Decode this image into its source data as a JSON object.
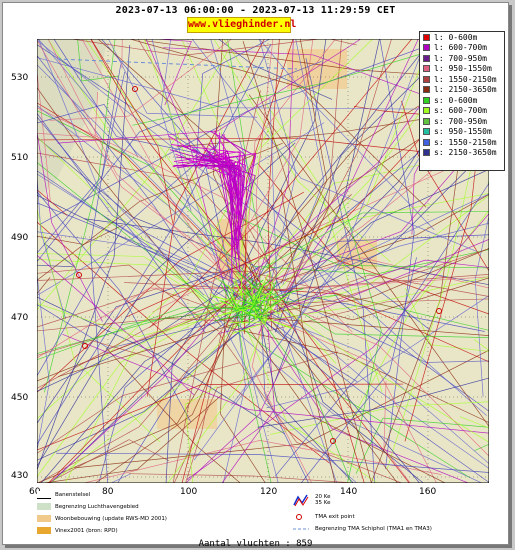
{
  "header": {
    "title": "2023-07-13 06:00:00 - 2023-07-13 11:29:59 CET",
    "site": "www.vlieghinder.nl"
  },
  "axes": {
    "y": [
      "530",
      "510",
      "490",
      "470",
      "450",
      "430"
    ],
    "x": [
      "60",
      "80",
      "100",
      "120",
      "140",
      "160"
    ]
  },
  "legend": [
    {
      "label": "l: 0-600m",
      "color": "#e00000"
    },
    {
      "label": "l: 600-700m",
      "color": "#b000c0"
    },
    {
      "label": "l: 700-950m",
      "color": "#6a1a8a"
    },
    {
      "label": "l: 950-1550m",
      "color": "#e06080"
    },
    {
      "label": "l: 1550-2150m",
      "color": "#b04040"
    },
    {
      "label": "l: 2150-3650m",
      "color": "#8a2a10"
    },
    {
      "label": "s: 0-600m",
      "color": "#30d020"
    },
    {
      "label": "s: 600-700m",
      "color": "#a0ff20"
    },
    {
      "label": "s: 700-950m",
      "color": "#60c040"
    },
    {
      "label": "s: 950-1550m",
      "color": "#20c0a0"
    },
    {
      "label": "s: 1550-2150m",
      "color": "#4060e0"
    },
    {
      "label": "s: 2150-3650m",
      "color": "#303090"
    }
  ],
  "key": {
    "runways": "Banenstelsel",
    "airport": "Begrenzing Luchthavengebied",
    "housing": "Woonbebouwing (update RWS-MD 2001)",
    "vinex": "Vinex2001 (bron: RPD)",
    "kw20": "20 Ke",
    "kw35": "35 Ke",
    "exit": "TMA exit point",
    "tma": "Begrenzing TMA Schiphol  (TMA1 en TMA3)"
  },
  "footer": {
    "count": "Aantal vluchten : 859"
  },
  "track_colors": [
    "#2a2a9a",
    "#4040c0",
    "#8a2a10",
    "#b04040",
    "#c00000",
    "#b000c0",
    "#30d020",
    "#a0ff20",
    "#e06080",
    "#6060d0"
  ]
}
